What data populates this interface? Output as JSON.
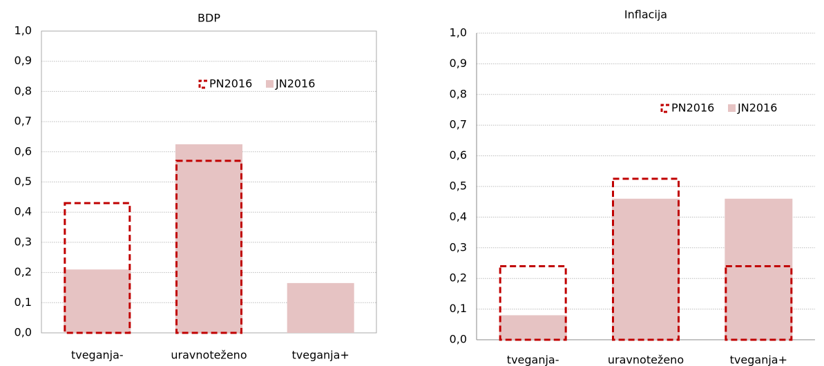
{
  "chart_data": [
    {
      "type": "bar",
      "title": "BDP",
      "categories": [
        "tveganja-",
        "uravnoteženo",
        "tveganja+"
      ],
      "series": [
        {
          "name": "PN2016",
          "color": "#c00000",
          "style": "dashed-outline",
          "values": [
            0.43,
            0.57,
            null
          ]
        },
        {
          "name": "JN2016",
          "color": "#e6c3c3",
          "style": "fill",
          "values": [
            0.21,
            0.625,
            0.165
          ]
        }
      ],
      "ylim": [
        0,
        1
      ],
      "yticks": [
        {
          "value": 0,
          "label": "0,0"
        },
        {
          "value": 0.1,
          "label": "0,1"
        },
        {
          "value": 0.2,
          "label": "0,2"
        },
        {
          "value": 0.3,
          "label": "0,3"
        },
        {
          "value": 0.4,
          "label": "0,4"
        },
        {
          "value": 0.5,
          "label": "0,5"
        },
        {
          "value": 0.6,
          "label": "0,6"
        },
        {
          "value": 0.7,
          "label": "0,7"
        },
        {
          "value": 0.8,
          "label": "0,8"
        },
        {
          "value": 0.9,
          "label": "0,9"
        },
        {
          "value": 1,
          "label": "1,0"
        }
      ],
      "grid": true,
      "legend": "upper-right"
    },
    {
      "type": "bar",
      "title": "Inflacija",
      "categories": [
        "tveganja-",
        "uravnoteženo",
        "tveganja+"
      ],
      "series": [
        {
          "name": "PN2016",
          "color": "#c00000",
          "style": "dashed-outline",
          "values": [
            0.24,
            0.525,
            0.24
          ]
        },
        {
          "name": "JN2016",
          "color": "#e6c3c3",
          "style": "fill",
          "values": [
            0.08,
            0.46,
            0.46
          ]
        }
      ],
      "ylim": [
        0,
        1
      ],
      "yticks": [
        {
          "value": 0,
          "label": "0,0"
        },
        {
          "value": 0.1,
          "label": "0,1"
        },
        {
          "value": 0.2,
          "label": "0,2"
        },
        {
          "value": 0.3,
          "label": "0,3"
        },
        {
          "value": 0.4,
          "label": "0,4"
        },
        {
          "value": 0.5,
          "label": "0,5"
        },
        {
          "value": 0.6,
          "label": "0,6"
        },
        {
          "value": 0.7,
          "label": "0,7"
        },
        {
          "value": 0.8,
          "label": "0,8"
        },
        {
          "value": 0.9,
          "label": "0,9"
        },
        {
          "value": 1,
          "label": "1,0"
        }
      ],
      "grid": true,
      "legend": "upper-right"
    }
  ]
}
